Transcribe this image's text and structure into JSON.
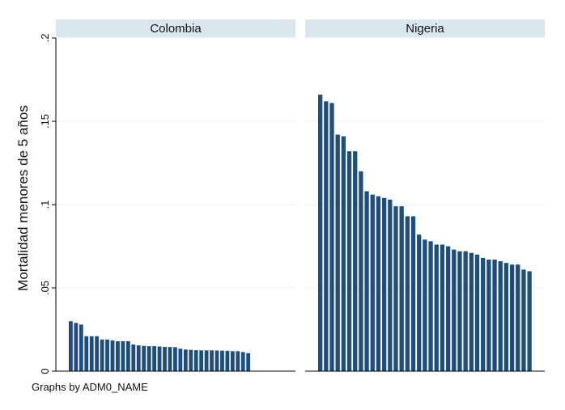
{
  "chart_data": {
    "type": "bar",
    "ylabel": "Mortalidad menores de 5 años",
    "ylim": [
      0,
      0.2
    ],
    "yticks": [
      0,
      0.05,
      0.1,
      0.15,
      0.2
    ],
    "ytick_labels": [
      "0",
      ".05",
      ".1",
      ".15",
      ".2"
    ],
    "grid": true,
    "note": "Graphs by ADM0_NAME",
    "bar_color": "#1f4e79",
    "strip_color": "#dae6ee",
    "panels": [
      {
        "title": "Colombia",
        "values": [
          0.03,
          0.029,
          0.028,
          0.021,
          0.021,
          0.021,
          0.019,
          0.019,
          0.0185,
          0.018,
          0.018,
          0.018,
          0.016,
          0.0155,
          0.0152,
          0.015,
          0.015,
          0.0148,
          0.0146,
          0.0145,
          0.0144,
          0.0135,
          0.013,
          0.0128,
          0.0126,
          0.0125,
          0.0125,
          0.0125,
          0.0124,
          0.0123,
          0.0122,
          0.012,
          0.012,
          0.0115,
          0.0108
        ]
      },
      {
        "title": "Nigeria",
        "values": [
          0.166,
          0.162,
          0.161,
          0.142,
          0.141,
          0.132,
          0.132,
          0.12,
          0.108,
          0.106,
          0.105,
          0.104,
          0.103,
          0.099,
          0.099,
          0.093,
          0.093,
          0.082,
          0.079,
          0.078,
          0.076,
          0.076,
          0.075,
          0.073,
          0.072,
          0.072,
          0.071,
          0.07,
          0.068,
          0.067,
          0.067,
          0.066,
          0.065,
          0.064,
          0.064,
          0.061,
          0.06
        ]
      }
    ]
  }
}
